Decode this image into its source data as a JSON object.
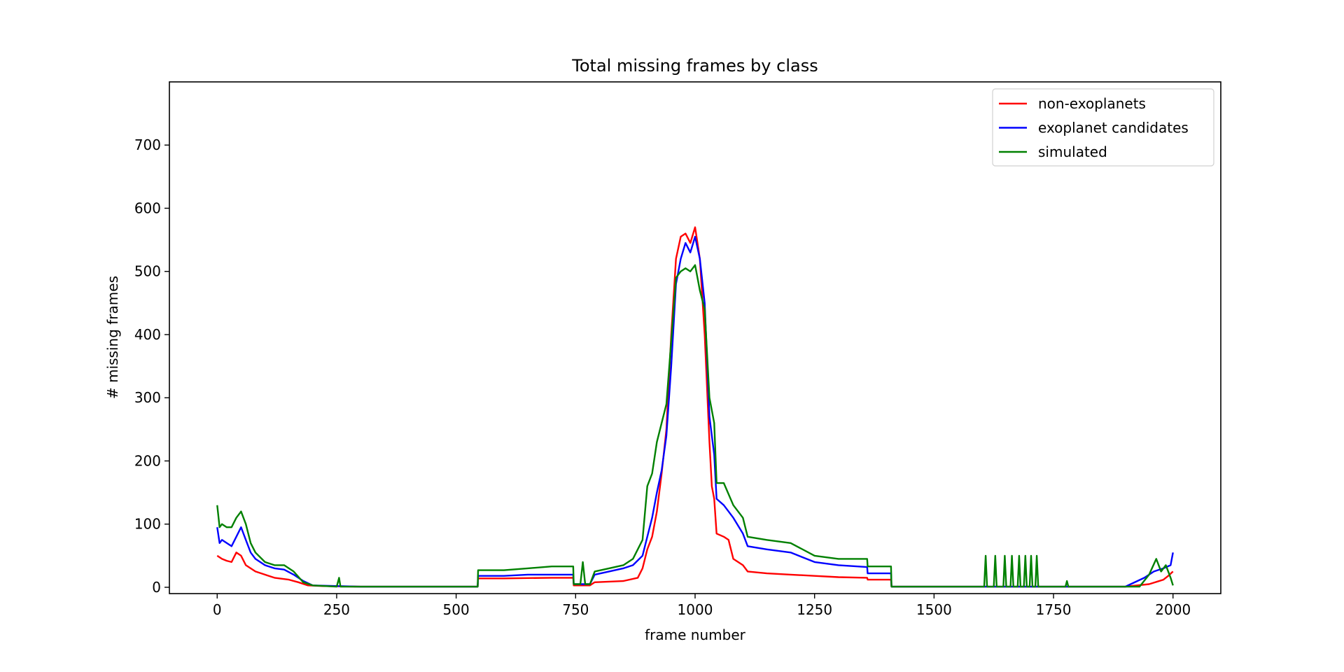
{
  "chart_data": {
    "type": "line",
    "title": "Total missing frames by class",
    "xlabel": "frame number",
    "ylabel": "# missing frames",
    "xlim": [
      -100,
      2100
    ],
    "ylim": [
      -10,
      800
    ],
    "xticks": [
      0,
      250,
      500,
      750,
      1000,
      1250,
      1500,
      1750,
      2000
    ],
    "yticks": [
      0,
      100,
      200,
      300,
      400,
      500,
      600,
      700
    ],
    "grid": false,
    "legend_position": "top-right",
    "series": [
      {
        "name": "non-exoplanets",
        "color": "#ff0000",
        "points": [
          [
            0,
            50
          ],
          [
            10,
            45
          ],
          [
            20,
            42
          ],
          [
            30,
            40
          ],
          [
            40,
            55
          ],
          [
            50,
            50
          ],
          [
            60,
            35
          ],
          [
            80,
            25
          ],
          [
            100,
            20
          ],
          [
            120,
            15
          ],
          [
            150,
            12
          ],
          [
            170,
            8
          ],
          [
            190,
            3
          ],
          [
            220,
            2
          ],
          [
            300,
            1
          ],
          [
            400,
            1
          ],
          [
            500,
            1
          ],
          [
            545,
            1
          ],
          [
            546,
            14
          ],
          [
            600,
            14
          ],
          [
            700,
            15
          ],
          [
            745,
            15
          ],
          [
            746,
            3
          ],
          [
            780,
            3
          ],
          [
            790,
            8
          ],
          [
            850,
            10
          ],
          [
            880,
            15
          ],
          [
            890,
            30
          ],
          [
            900,
            60
          ],
          [
            910,
            80
          ],
          [
            920,
            120
          ],
          [
            930,
            180
          ],
          [
            940,
            250
          ],
          [
            950,
            400
          ],
          [
            960,
            520
          ],
          [
            970,
            555
          ],
          [
            980,
            560
          ],
          [
            990,
            545
          ],
          [
            1000,
            570
          ],
          [
            1010,
            520
          ],
          [
            1020,
            400
          ],
          [
            1030,
            230
          ],
          [
            1035,
            160
          ],
          [
            1040,
            140
          ],
          [
            1045,
            85
          ],
          [
            1060,
            80
          ],
          [
            1070,
            75
          ],
          [
            1080,
            45
          ],
          [
            1100,
            35
          ],
          [
            1110,
            25
          ],
          [
            1150,
            22
          ],
          [
            1200,
            20
          ],
          [
            1250,
            18
          ],
          [
            1300,
            16
          ],
          [
            1360,
            15
          ],
          [
            1361,
            12
          ],
          [
            1410,
            12
          ],
          [
            1411,
            1
          ],
          [
            1600,
            1
          ],
          [
            1900,
            1
          ],
          [
            1950,
            5
          ],
          [
            1980,
            12
          ],
          [
            1990,
            18
          ],
          [
            2000,
            25
          ]
        ]
      },
      {
        "name": "exoplanet candidates",
        "color": "#0000ff",
        "points": [
          [
            0,
            95
          ],
          [
            5,
            70
          ],
          [
            10,
            75
          ],
          [
            20,
            70
          ],
          [
            30,
            65
          ],
          [
            40,
            80
          ],
          [
            50,
            95
          ],
          [
            60,
            75
          ],
          [
            70,
            55
          ],
          [
            80,
            45
          ],
          [
            100,
            35
          ],
          [
            120,
            30
          ],
          [
            140,
            28
          ],
          [
            160,
            20
          ],
          [
            180,
            10
          ],
          [
            200,
            3
          ],
          [
            300,
            1
          ],
          [
            400,
            1
          ],
          [
            545,
            1
          ],
          [
            546,
            18
          ],
          [
            600,
            18
          ],
          [
            650,
            20
          ],
          [
            700,
            20
          ],
          [
            745,
            20
          ],
          [
            746,
            5
          ],
          [
            760,
            5
          ],
          [
            780,
            5
          ],
          [
            790,
            20
          ],
          [
            820,
            25
          ],
          [
            850,
            30
          ],
          [
            870,
            35
          ],
          [
            890,
            50
          ],
          [
            900,
            80
          ],
          [
            910,
            110
          ],
          [
            920,
            150
          ],
          [
            930,
            185
          ],
          [
            940,
            240
          ],
          [
            950,
            350
          ],
          [
            960,
            480
          ],
          [
            970,
            520
          ],
          [
            980,
            545
          ],
          [
            990,
            530
          ],
          [
            1000,
            555
          ],
          [
            1010,
            520
          ],
          [
            1020,
            450
          ],
          [
            1030,
            270
          ],
          [
            1040,
            210
          ],
          [
            1045,
            140
          ],
          [
            1060,
            130
          ],
          [
            1080,
            110
          ],
          [
            1100,
            85
          ],
          [
            1110,
            65
          ],
          [
            1150,
            60
          ],
          [
            1200,
            55
          ],
          [
            1250,
            40
          ],
          [
            1300,
            35
          ],
          [
            1360,
            32
          ],
          [
            1361,
            22
          ],
          [
            1410,
            22
          ],
          [
            1411,
            1
          ],
          [
            1600,
            1
          ],
          [
            1900,
            1
          ],
          [
            1940,
            15
          ],
          [
            1960,
            25
          ],
          [
            1980,
            30
          ],
          [
            1995,
            35
          ],
          [
            2000,
            55
          ]
        ]
      },
      {
        "name": "simulated",
        "color": "#008000",
        "points": [
          [
            0,
            130
          ],
          [
            5,
            95
          ],
          [
            10,
            100
          ],
          [
            20,
            95
          ],
          [
            30,
            95
          ],
          [
            40,
            110
          ],
          [
            50,
            120
          ],
          [
            60,
            100
          ],
          [
            70,
            70
          ],
          [
            80,
            55
          ],
          [
            100,
            40
          ],
          [
            120,
            35
          ],
          [
            140,
            35
          ],
          [
            160,
            25
          ],
          [
            180,
            8
          ],
          [
            200,
            3
          ],
          [
            250,
            1
          ],
          [
            255,
            15
          ],
          [
            258,
            1
          ],
          [
            300,
            1
          ],
          [
            400,
            1
          ],
          [
            545,
            1
          ],
          [
            546,
            27
          ],
          [
            600,
            27
          ],
          [
            650,
            30
          ],
          [
            700,
            33
          ],
          [
            745,
            33
          ],
          [
            746,
            5
          ],
          [
            760,
            5
          ],
          [
            765,
            40
          ],
          [
            770,
            5
          ],
          [
            780,
            5
          ],
          [
            790,
            25
          ],
          [
            820,
            30
          ],
          [
            850,
            35
          ],
          [
            870,
            45
          ],
          [
            890,
            75
          ],
          [
            900,
            160
          ],
          [
            910,
            180
          ],
          [
            920,
            230
          ],
          [
            930,
            260
          ],
          [
            940,
            290
          ],
          [
            950,
            390
          ],
          [
            960,
            490
          ],
          [
            970,
            500
          ],
          [
            980,
            505
          ],
          [
            990,
            500
          ],
          [
            1000,
            510
          ],
          [
            1010,
            470
          ],
          [
            1020,
            440
          ],
          [
            1030,
            300
          ],
          [
            1040,
            260
          ],
          [
            1045,
            165
          ],
          [
            1060,
            165
          ],
          [
            1080,
            130
          ],
          [
            1100,
            110
          ],
          [
            1110,
            80
          ],
          [
            1150,
            75
          ],
          [
            1200,
            70
          ],
          [
            1250,
            50
          ],
          [
            1300,
            45
          ],
          [
            1360,
            45
          ],
          [
            1361,
            33
          ],
          [
            1410,
            33
          ],
          [
            1411,
            1
          ],
          [
            1605,
            1
          ],
          [
            1608,
            50
          ],
          [
            1611,
            1
          ],
          [
            1625,
            1
          ],
          [
            1628,
            50
          ],
          [
            1631,
            1
          ],
          [
            1645,
            1
          ],
          [
            1648,
            50
          ],
          [
            1651,
            1
          ],
          [
            1660,
            1
          ],
          [
            1663,
            50
          ],
          [
            1666,
            1
          ],
          [
            1675,
            1
          ],
          [
            1678,
            50
          ],
          [
            1681,
            1
          ],
          [
            1688,
            1
          ],
          [
            1691,
            50
          ],
          [
            1694,
            1
          ],
          [
            1700,
            1
          ],
          [
            1703,
            50
          ],
          [
            1706,
            1
          ],
          [
            1712,
            1
          ],
          [
            1715,
            50
          ],
          [
            1718,
            1
          ],
          [
            1775,
            1
          ],
          [
            1778,
            10
          ],
          [
            1781,
            1
          ],
          [
            1930,
            1
          ],
          [
            1950,
            20
          ],
          [
            1965,
            45
          ],
          [
            1975,
            25
          ],
          [
            1985,
            35
          ],
          [
            1995,
            15
          ],
          [
            2000,
            3
          ]
        ]
      }
    ]
  }
}
